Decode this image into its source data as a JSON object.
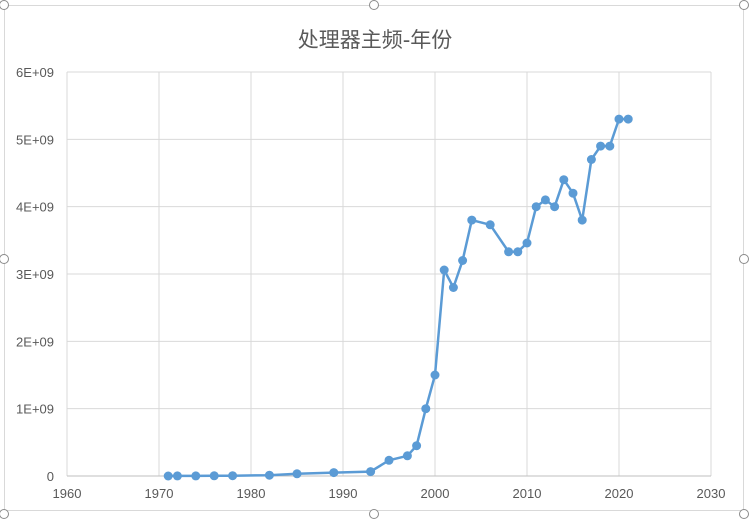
{
  "chart_data": {
    "type": "scatter",
    "title": "处理器主频-年份",
    "xlabel": "",
    "ylabel": "",
    "xlim": [
      1960,
      2030
    ],
    "ylim": [
      0,
      6000000000
    ],
    "x_ticks": [
      "1960",
      "1970",
      "1980",
      "1990",
      "2000",
      "2010",
      "2020",
      "2030"
    ],
    "y_ticks": [
      "0",
      "1E+09",
      "2E+09",
      "3E+09",
      "4E+09",
      "5E+09",
      "6E+09"
    ],
    "grid": true,
    "legend": "none",
    "series_color": "#5b9bd5",
    "series": [
      {
        "x": [
          1971,
          1972,
          1974,
          1976,
          1978,
          1982,
          1985,
          1989,
          1993,
          1995,
          1997,
          1998,
          1999,
          2000,
          2001,
          2002,
          2003,
          2004,
          2006,
          2008,
          2009,
          2010,
          2011,
          2012,
          2013,
          2014,
          2015,
          2016,
          2017,
          2018,
          2019,
          2020,
          2021
        ],
        "y": [
          740000,
          800000,
          2000000,
          3000000,
          5000000,
          12000000,
          33000000,
          50000000,
          66000000,
          233000000,
          300000000,
          450000000,
          1000000000,
          1500000000,
          3060000000,
          2800000000,
          3200000000,
          3800000000,
          3730000000,
          3330000000,
          3330000000,
          3460000000,
          4000000000,
          4100000000,
          4000000000,
          4400000000,
          4200000000,
          3800000000,
          4700000000,
          4900000000,
          4900000000,
          5300000000,
          5300000000
        ]
      }
    ]
  }
}
